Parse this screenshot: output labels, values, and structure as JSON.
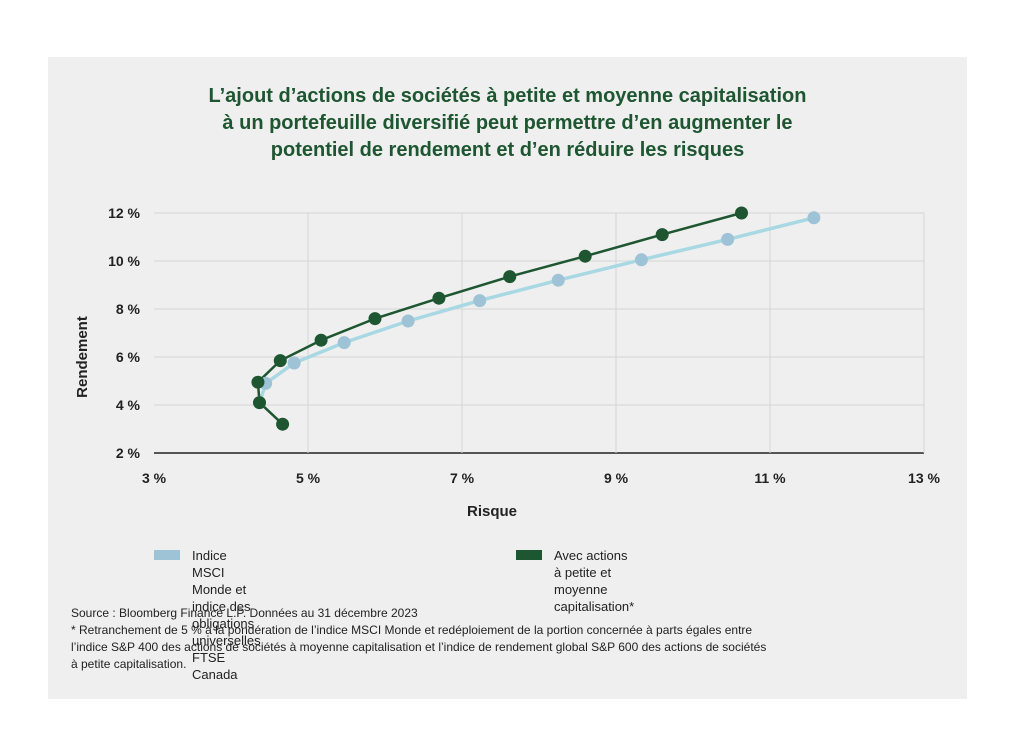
{
  "title_lines": [
    "L’ajout d’actions de sociétés à petite et moyenne capitalisation",
    "à un portefeuille diversifié peut permettre d’en augmenter le",
    "potentiel de rendement et d’en réduire les risques"
  ],
  "colors": {
    "series_light": "#a8d8e3",
    "series_light_marker": "#9ec3d6",
    "series_dark": "#1e5631",
    "title": "#1e5631",
    "panel": "#efefef",
    "grid": "#d6d6d6"
  },
  "chart_data": {
    "type": "line",
    "xlabel": "Risque",
    "ylabel": "Rendement",
    "xlim": [
      3,
      13
    ],
    "ylim": [
      2,
      12
    ],
    "x_ticks": [
      3,
      5,
      7,
      9,
      11,
      13
    ],
    "y_ticks": [
      2,
      4,
      6,
      8,
      10,
      12
    ],
    "x_tick_labels": [
      "3 %",
      "5 %",
      "7 %",
      "9 %",
      "11 %",
      "13 %"
    ],
    "y_tick_labels": [
      "2 %",
      "4 %",
      "6 %",
      "8 %",
      "10 %",
      "12 %"
    ],
    "grid": true,
    "legend_position": "bottom",
    "series": [
      {
        "name": "Indice MSCI Monde et indice des obligations universelles FTSE Canada",
        "legend_lines": [
          "Indice MSCI Monde et indice des obligations",
          "universelles FTSE Canada"
        ],
        "points": [
          [
            4.37,
            4.1
          ],
          [
            4.45,
            4.9
          ],
          [
            4.82,
            5.75
          ],
          [
            5.47,
            6.6
          ],
          [
            6.3,
            7.5
          ],
          [
            7.23,
            8.35
          ],
          [
            8.25,
            9.2
          ],
          [
            9.33,
            10.05
          ],
          [
            10.45,
            10.9
          ],
          [
            11.57,
            11.8
          ]
        ]
      },
      {
        "name": "Avec actions à petite et moyenne capitalisation*",
        "legend_lines": [
          "Avec actions à petite et moyenne",
          "capitalisation*"
        ],
        "points": [
          [
            4.67,
            3.2
          ],
          [
            4.37,
            4.1
          ],
          [
            4.35,
            4.95
          ],
          [
            4.64,
            5.85
          ],
          [
            5.17,
            6.7
          ],
          [
            5.87,
            7.6
          ],
          [
            6.7,
            8.45
          ],
          [
            7.62,
            9.35
          ],
          [
            8.6,
            10.2
          ],
          [
            9.6,
            11.1
          ],
          [
            10.63,
            12.0
          ]
        ]
      }
    ]
  },
  "footer": {
    "source": "Source : Bloomberg Finance L.P. Données au 31 décembre 2023",
    "note_lines": [
      "* Retranchement de 5 % à la pondération de l’indice MSCI Monde et redéploiement de la portion concernée à parts égales entre",
      "l’indice S&P 400 des actions de sociétés à moyenne capitalisation et l’indice de rendement global S&P 600 des actions de sociétés",
      "à petite capitalisation."
    ]
  }
}
